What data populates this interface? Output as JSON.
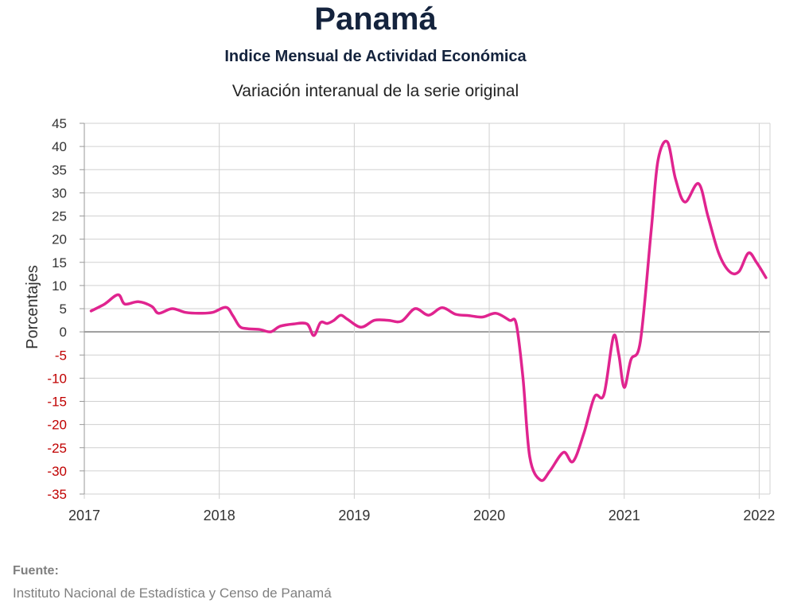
{
  "header": {
    "title": "Panamá",
    "subtitle": "Indice Mensual de  Actividad Económica",
    "description": "Variación interanual de la serie original"
  },
  "footer": {
    "source_label": "Fuente:",
    "source_text": "Instituto Nacional de Estadística y Censo de Panamá"
  },
  "colors": {
    "series": "#e0248f",
    "negative_tick": "#c00000",
    "positive_tick": "#333333",
    "grid": "#d0d0d0",
    "zero_line": "#7f7f7f"
  },
  "chart_data": {
    "type": "line",
    "title": "Panamá",
    "subtitle": "Indice Mensual de  Actividad Económica",
    "description": "Variación interanual de la serie original",
    "xlabel": "",
    "ylabel": "Porcentajes",
    "xlim": [
      2017,
      2022.08
    ],
    "ylim": [
      -35,
      45
    ],
    "y_ticks": [
      45,
      40,
      35,
      30,
      25,
      20,
      15,
      10,
      5,
      0,
      -5,
      -10,
      -15,
      -20,
      -25,
      -30,
      -35
    ],
    "x_ticks": [
      {
        "value": 2017,
        "label": "2017"
      },
      {
        "value": 2018,
        "label": "2018"
      },
      {
        "value": 2019,
        "label": "2019"
      },
      {
        "value": 2020,
        "label": "2020"
      },
      {
        "value": 2021,
        "label": "2021"
      },
      {
        "value": 2022,
        "label": "2022"
      }
    ],
    "grid": true,
    "legend": "none",
    "series": [
      {
        "color": "#e0248f",
        "x": [
          2017.05,
          2017.15,
          2017.25,
          2017.3,
          2017.4,
          2017.5,
          2017.55,
          2017.65,
          2017.75,
          2017.85,
          2017.95,
          2018.05,
          2018.1,
          2018.15,
          2018.2,
          2018.3,
          2018.38,
          2018.45,
          2018.55,
          2018.65,
          2018.7,
          2018.75,
          2018.8,
          2018.85,
          2018.9,
          2018.95,
          2019.05,
          2019.15,
          2019.25,
          2019.35,
          2019.45,
          2019.55,
          2019.65,
          2019.75,
          2019.85,
          2019.95,
          2020.05,
          2020.15,
          2020.2,
          2020.25,
          2020.3,
          2020.38,
          2020.45,
          2020.55,
          2020.62,
          2020.7,
          2020.78,
          2020.85,
          2020.92,
          2020.96,
          2021.0,
          2021.05,
          2021.12,
          2021.2,
          2021.25,
          2021.32,
          2021.38,
          2021.45,
          2021.55,
          2021.62,
          2021.7,
          2021.78,
          2021.85,
          2021.92,
          2021.98,
          2022.05
        ],
        "values": [
          4.5,
          6.0,
          8.0,
          6.0,
          6.5,
          5.5,
          4.0,
          5.0,
          4.2,
          4.0,
          4.2,
          5.3,
          3.5,
          1.2,
          0.7,
          0.5,
          0.0,
          1.2,
          1.7,
          1.7,
          -0.8,
          2.0,
          1.8,
          2.5,
          3.6,
          2.7,
          1.0,
          2.5,
          2.5,
          2.3,
          5.0,
          3.6,
          5.2,
          3.8,
          3.5,
          3.2,
          4.0,
          2.5,
          1.7,
          -10.0,
          -27.0,
          -32.0,
          -30.0,
          -26.0,
          -28.0,
          -22.0,
          -14.0,
          -13.5,
          -1.0,
          -5.0,
          -12.0,
          -6.0,
          -2.0,
          22.0,
          37.0,
          41.0,
          33.0,
          28.0,
          32.0,
          25.0,
          17.0,
          13.0,
          13.0,
          17.0,
          15.0,
          11.7
        ]
      }
    ]
  }
}
